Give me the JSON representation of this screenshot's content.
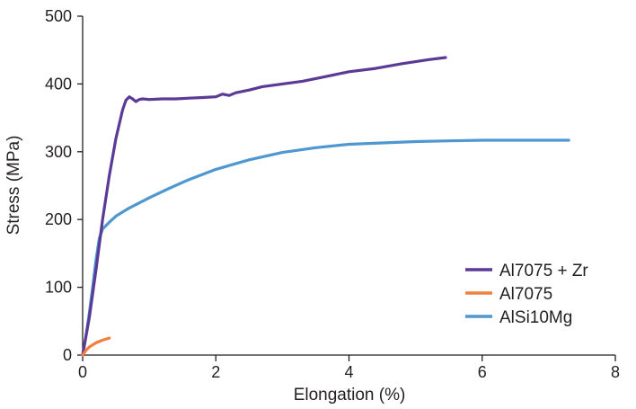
{
  "chart_data": {
    "type": "line",
    "title": "",
    "xlabel": "Elongation (%)",
    "ylabel": "Stress (MPa)",
    "xlim": [
      0,
      8
    ],
    "ylim": [
      0,
      500
    ],
    "x_ticks": [
      0,
      2,
      4,
      6,
      8
    ],
    "y_ticks": [
      0,
      100,
      200,
      300,
      400,
      500
    ],
    "grid": false,
    "legend_position": "bottom-right",
    "series": [
      {
        "name": "Al7075 + Zr",
        "color": "#5b3a96",
        "points": [
          [
            0,
            0
          ],
          [
            0.1,
            55
          ],
          [
            0.2,
            125
          ],
          [
            0.3,
            200
          ],
          [
            0.4,
            265
          ],
          [
            0.5,
            320
          ],
          [
            0.6,
            362
          ],
          [
            0.65,
            376
          ],
          [
            0.7,
            381
          ],
          [
            0.75,
            378
          ],
          [
            0.8,
            374
          ],
          [
            0.85,
            377
          ],
          [
            0.9,
            378
          ],
          [
            1.0,
            377
          ],
          [
            1.2,
            378
          ],
          [
            1.4,
            378
          ],
          [
            1.6,
            379
          ],
          [
            1.8,
            380
          ],
          [
            2.0,
            381
          ],
          [
            2.1,
            385
          ],
          [
            2.2,
            383
          ],
          [
            2.3,
            387
          ],
          [
            2.5,
            391
          ],
          [
            2.7,
            396
          ],
          [
            3.0,
            400
          ],
          [
            3.3,
            404
          ],
          [
            3.6,
            410
          ],
          [
            4.0,
            418
          ],
          [
            4.4,
            423
          ],
          [
            4.8,
            430
          ],
          [
            5.2,
            436
          ],
          [
            5.45,
            439
          ]
        ]
      },
      {
        "name": "Al7075",
        "color": "#f0803c",
        "points": [
          [
            0,
            0
          ],
          [
            0.05,
            7
          ],
          [
            0.1,
            12
          ],
          [
            0.15,
            15
          ],
          [
            0.2,
            18
          ],
          [
            0.3,
            22
          ],
          [
            0.4,
            25
          ]
        ]
      },
      {
        "name": "AlSi10Mg",
        "color": "#4f97d1",
        "points": [
          [
            0,
            0
          ],
          [
            0.05,
            28
          ],
          [
            0.1,
            62
          ],
          [
            0.15,
            100
          ],
          [
            0.2,
            140
          ],
          [
            0.25,
            172
          ],
          [
            0.3,
            186
          ],
          [
            0.4,
            196
          ],
          [
            0.5,
            205
          ],
          [
            0.7,
            217
          ],
          [
            1.0,
            232
          ],
          [
            1.3,
            246
          ],
          [
            1.6,
            259
          ],
          [
            2.0,
            274
          ],
          [
            2.5,
            288
          ],
          [
            3.0,
            299
          ],
          [
            3.5,
            306
          ],
          [
            4.0,
            311
          ],
          [
            4.5,
            313
          ],
          [
            5.0,
            315
          ],
          [
            5.5,
            316
          ],
          [
            6.0,
            317
          ],
          [
            6.5,
            317
          ],
          [
            7.0,
            317
          ],
          [
            7.3,
            317
          ]
        ]
      }
    ]
  }
}
